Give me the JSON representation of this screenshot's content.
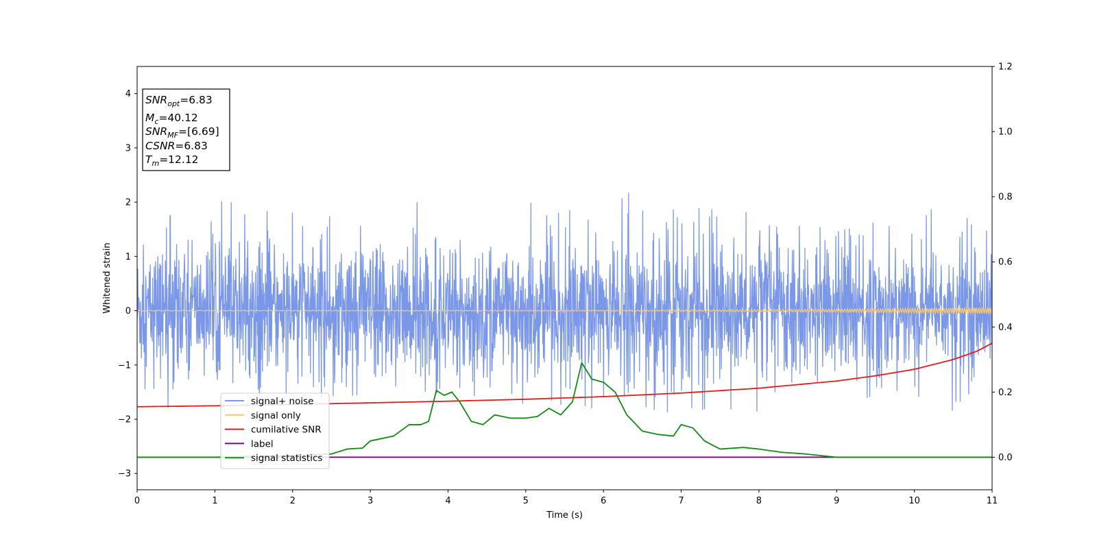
{
  "chart_data": {
    "type": "line",
    "xlabel": "Time (s)",
    "ylabel": "Whitened strain",
    "xlim": [
      0,
      11
    ],
    "ylim": [
      -3.3,
      4.5
    ],
    "y2lim": [
      -0.1,
      1.2
    ],
    "grid": false,
    "legend_position": "lower-left",
    "x_ticks": [
      0,
      1,
      2,
      3,
      4,
      5,
      6,
      7,
      8,
      9,
      10,
      11
    ],
    "y_ticks": [
      -3,
      -2,
      -1,
      0,
      1,
      2,
      3,
      4
    ],
    "y2_ticks": [
      "0.0",
      "0.2",
      "0.4",
      "0.6",
      "0.8",
      "1.0",
      "1.2"
    ],
    "annotation": {
      "lines": [
        {
          "sym": "SNR",
          "sub": "opt",
          "val": "=6.83"
        },
        {
          "sym": "M",
          "sub": "c",
          "val": "=40.12"
        },
        {
          "sym": "SNR",
          "sub": "MF",
          "val": "=[6.69]"
        },
        {
          "sym": "CSNR",
          "sub": "",
          "val": "=6.83"
        },
        {
          "sym": "T",
          "sub": "m",
          "val": "=12.12"
        }
      ]
    },
    "series": [
      {
        "name": "signal+ noise",
        "color": "#7b97e8",
        "axis": "left",
        "envelope_upper": [
          [
            0,
            1.3
          ],
          [
            0.8,
            2.15
          ],
          [
            2.3,
            1.95
          ],
          [
            7.05,
            2.25
          ],
          [
            8,
            1.85
          ],
          [
            9,
            1.45
          ],
          [
            10.4,
            1.95
          ],
          [
            11,
            1.4
          ]
        ],
        "envelope_lower": [
          [
            0,
            -2.05
          ],
          [
            1.5,
            -1.75
          ],
          [
            3.5,
            -1.45
          ],
          [
            5.2,
            -1.75
          ],
          [
            8,
            -1.95
          ],
          [
            10.9,
            -1.9
          ],
          [
            11,
            -1.4
          ]
        ]
      },
      {
        "name": "signal only",
        "color": "#fbc96b",
        "axis": "left",
        "amplitude_start": 0.005,
        "amplitude_end": 0.06
      },
      {
        "name": "cumilative SNR",
        "color": "#e41a1c",
        "axis": "right",
        "points": [
          [
            0,
            0.155
          ],
          [
            1,
            0.158
          ],
          [
            2,
            0.162
          ],
          [
            3,
            0.167
          ],
          [
            4,
            0.172
          ],
          [
            5,
            0.178
          ],
          [
            6,
            0.186
          ],
          [
            7,
            0.197
          ],
          [
            8,
            0.212
          ],
          [
            9,
            0.234
          ],
          [
            9.5,
            0.25
          ],
          [
            10,
            0.27
          ],
          [
            10.5,
            0.3
          ],
          [
            10.8,
            0.325
          ],
          [
            11,
            0.35
          ]
        ]
      },
      {
        "name": "label",
        "color": "#800080",
        "axis": "right",
        "points": [
          [
            0,
            0.0
          ],
          [
            11,
            0.0
          ]
        ]
      },
      {
        "name": "signal statistics",
        "color": "#138a13",
        "axis": "right",
        "points": [
          [
            0,
            0.0
          ],
          [
            1,
            0.0
          ],
          [
            2,
            0.005
          ],
          [
            2.5,
            0.01
          ],
          [
            2.7,
            0.025
          ],
          [
            2.9,
            0.028
          ],
          [
            3,
            0.05
          ],
          [
            3.3,
            0.065
          ],
          [
            3.5,
            0.1
          ],
          [
            3.65,
            0.1
          ],
          [
            3.75,
            0.11
          ],
          [
            3.85,
            0.205
          ],
          [
            3.95,
            0.19
          ],
          [
            4.05,
            0.2
          ],
          [
            4.15,
            0.17
          ],
          [
            4.3,
            0.11
          ],
          [
            4.45,
            0.1
          ],
          [
            4.6,
            0.13
          ],
          [
            4.8,
            0.12
          ],
          [
            5.0,
            0.12
          ],
          [
            5.15,
            0.125
          ],
          [
            5.3,
            0.15
          ],
          [
            5.45,
            0.13
          ],
          [
            5.6,
            0.17
          ],
          [
            5.72,
            0.29
          ],
          [
            5.85,
            0.24
          ],
          [
            6.0,
            0.23
          ],
          [
            6.15,
            0.2
          ],
          [
            6.3,
            0.13
          ],
          [
            6.5,
            0.08
          ],
          [
            6.7,
            0.07
          ],
          [
            6.9,
            0.065
          ],
          [
            7.0,
            0.1
          ],
          [
            7.15,
            0.09
          ],
          [
            7.3,
            0.05
          ],
          [
            7.5,
            0.025
          ],
          [
            7.8,
            0.03
          ],
          [
            8.0,
            0.025
          ],
          [
            8.3,
            0.015
          ],
          [
            8.6,
            0.01
          ],
          [
            9,
            0.0
          ],
          [
            11,
            0.0
          ]
        ]
      }
    ]
  }
}
